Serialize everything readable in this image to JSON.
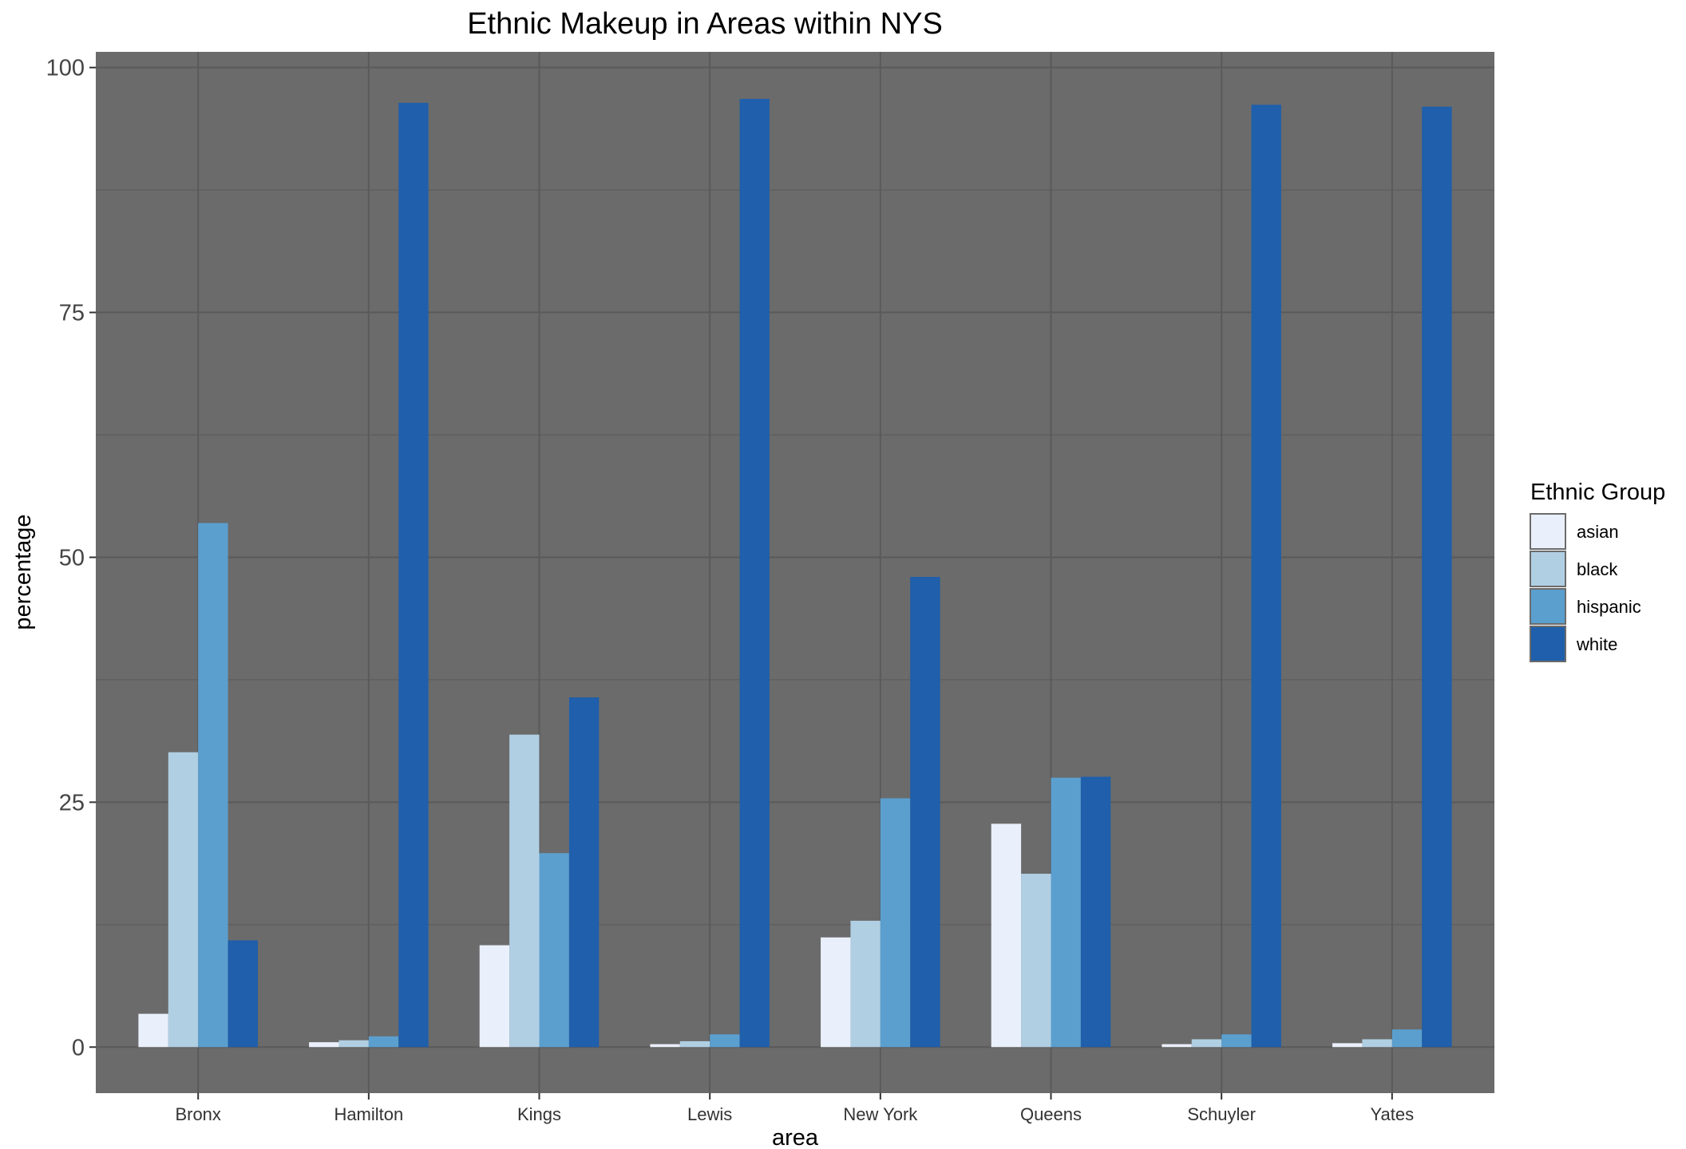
{
  "chart_data": {
    "type": "bar",
    "title": "Ethnic Makeup in Areas within NYS",
    "xlabel": "area",
    "ylabel": "percentage",
    "ylim": [
      -4.7,
      101.6
    ],
    "yticks": [
      0,
      25,
      50,
      75,
      100
    ],
    "categories": [
      "Bronx",
      "Hamilton",
      "Kings",
      "Lewis",
      "New York",
      "Queens",
      "Schuyler",
      "Yates"
    ],
    "legend_title": "Ethnic Group",
    "legend_position": "right",
    "grid": true,
    "panel_background": "#6b6b6b",
    "grid_color": "#5a5a5a",
    "series": [
      {
        "name": "asian",
        "color": "#eaf0fb",
        "values": [
          3.4,
          0.5,
          10.4,
          0.3,
          11.2,
          22.8,
          0.3,
          0.4
        ]
      },
      {
        "name": "black",
        "color": "#b1cfe3",
        "values": [
          30.1,
          0.7,
          31.9,
          0.6,
          12.9,
          17.7,
          0.8,
          0.8
        ]
      },
      {
        "name": "hispanic",
        "color": "#5b9fcf",
        "values": [
          53.5,
          1.1,
          19.8,
          1.3,
          25.4,
          27.5,
          1.3,
          1.8
        ]
      },
      {
        "name": "white",
        "color": "#1f5fab",
        "values": [
          10.9,
          96.4,
          35.7,
          96.8,
          48.0,
          27.6,
          96.2,
          96.0
        ]
      }
    ]
  }
}
